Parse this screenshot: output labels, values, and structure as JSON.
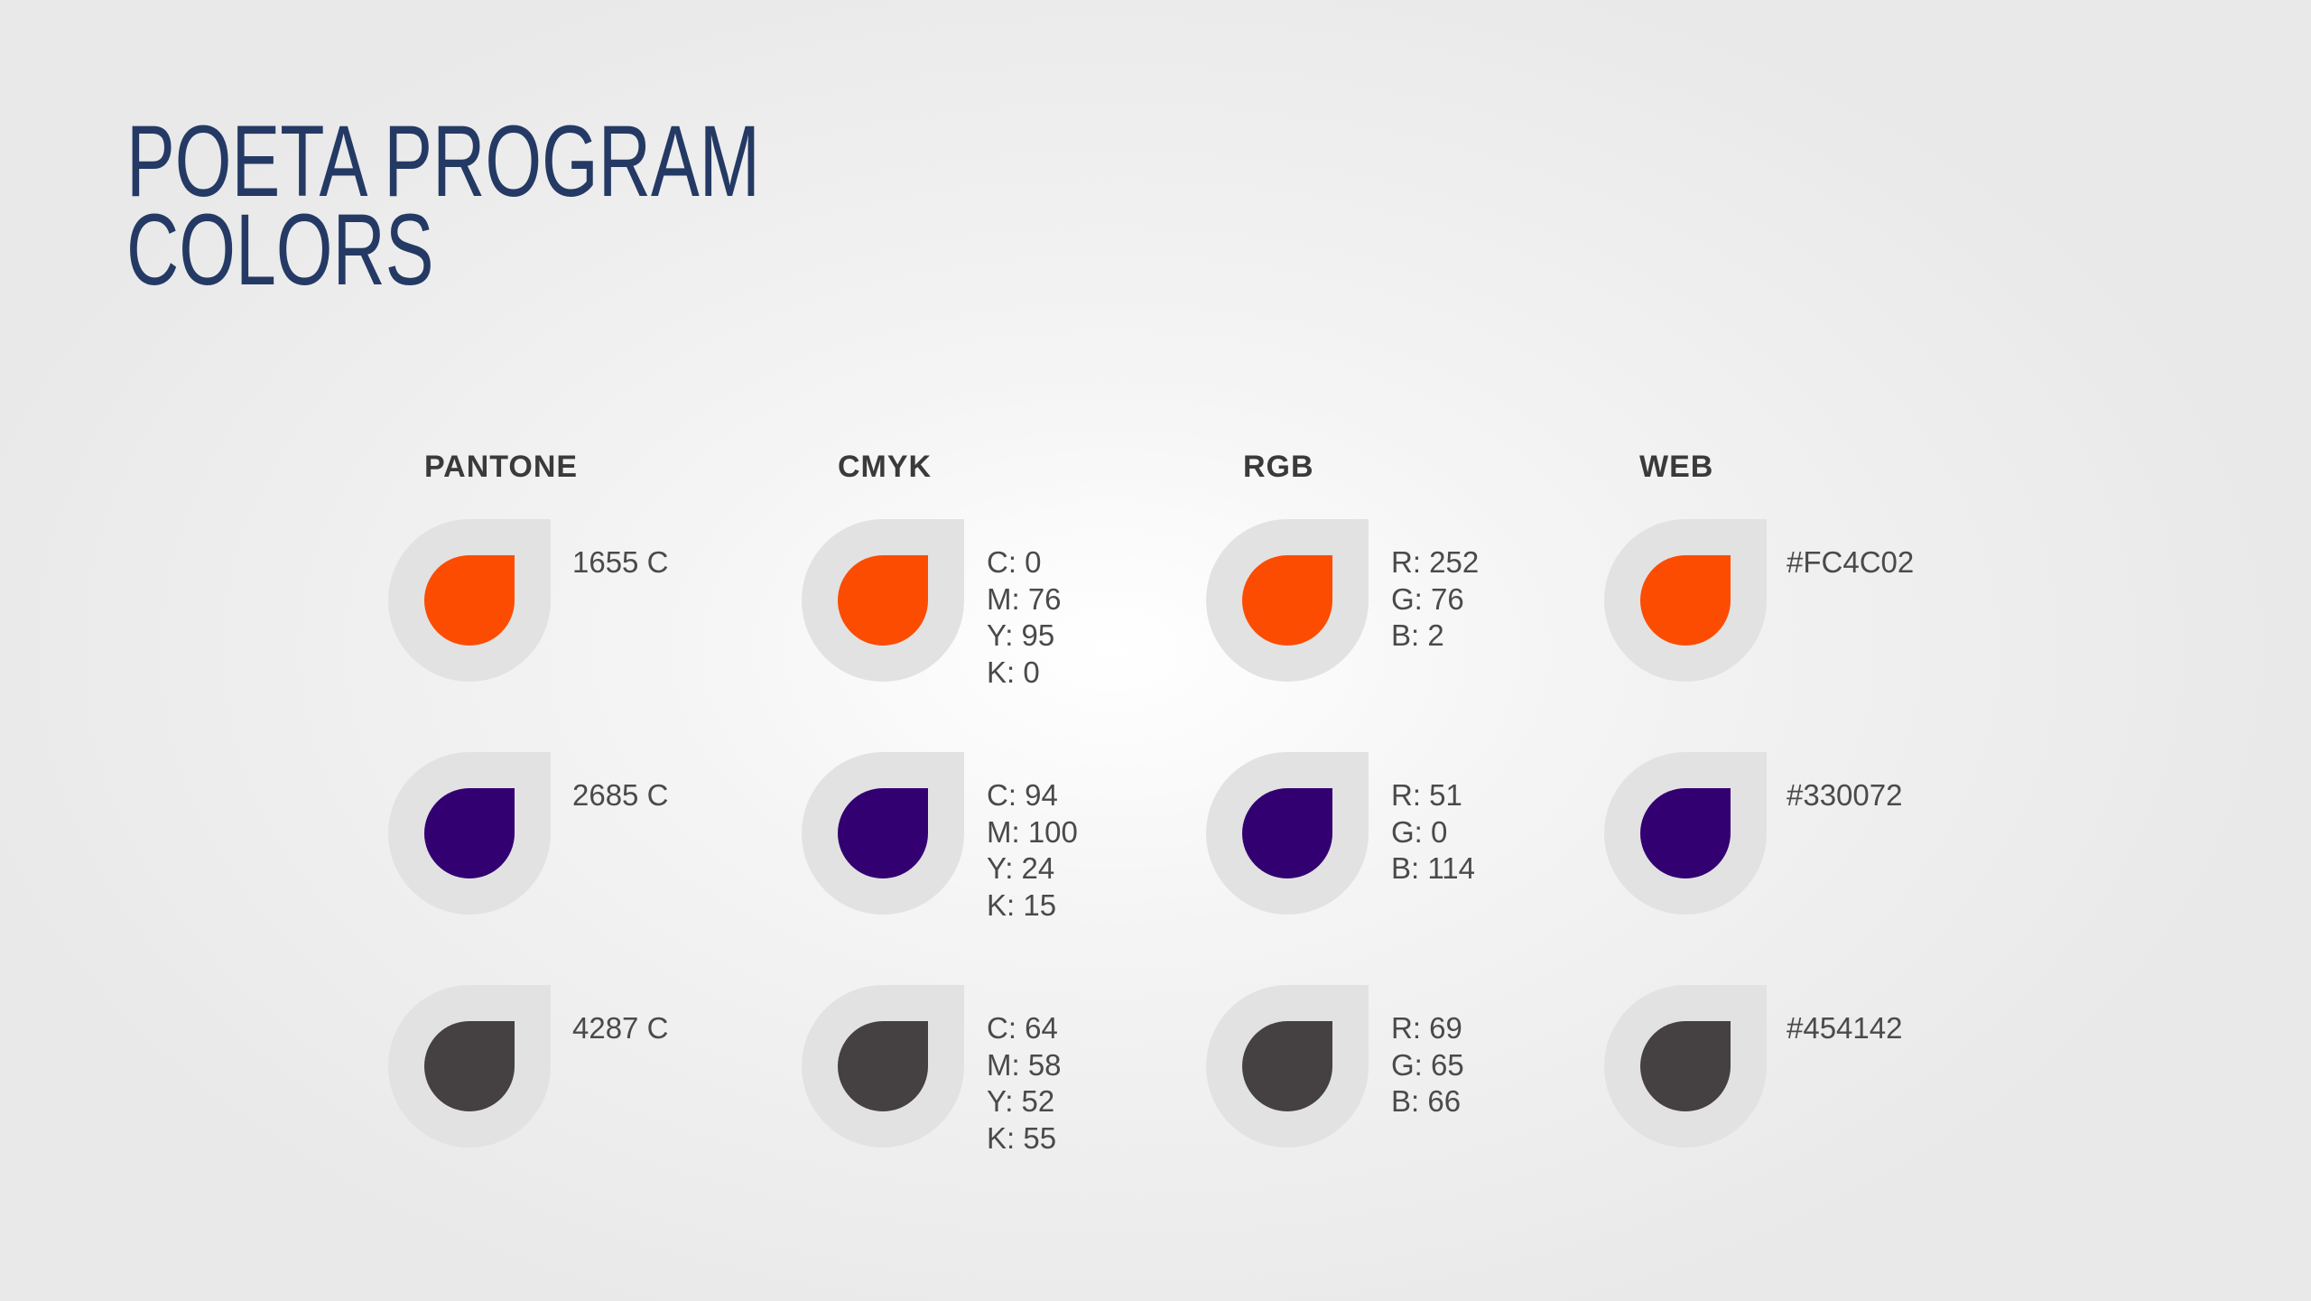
{
  "title": {
    "line1": "POETA PROGRAM",
    "line2": "COLORS"
  },
  "headers": [
    "PANTONE",
    "CMYK",
    "RGB",
    "WEB"
  ],
  "colors": [
    {
      "hex": "#FC4C02",
      "pantone": "1655 C",
      "cmyk": [
        "C: 0",
        "M: 76",
        "Y: 95",
        "K: 0"
      ],
      "rgb": [
        "R: 252",
        "G: 76",
        "B: 2"
      ],
      "web": "#FC4C02"
    },
    {
      "hex": "#330072",
      "pantone": "2685 C",
      "cmyk": [
        "C: 94",
        "M: 100",
        "Y: 24",
        "K: 15"
      ],
      "rgb": [
        "R: 51",
        "G: 0",
        "B: 114"
      ],
      "web": "#330072"
    },
    {
      "hex": "#454142",
      "pantone": "4287 C",
      "cmyk": [
        "C: 64",
        "M: 58",
        "Y: 52",
        "K: 55"
      ],
      "rgb": [
        "R: 69",
        "G: 65",
        "B: 66"
      ],
      "web": "#454142"
    }
  ]
}
